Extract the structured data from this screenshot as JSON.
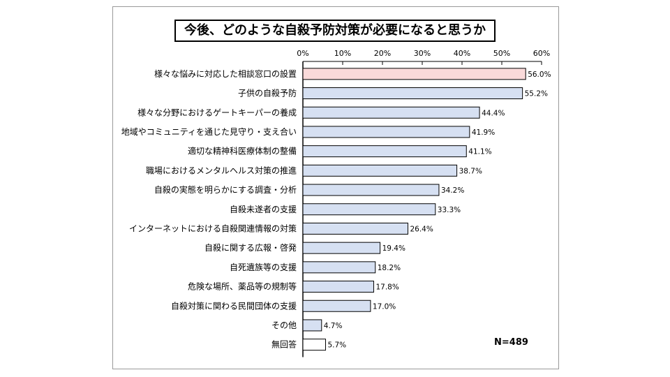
{
  "chart_data": {
    "type": "bar",
    "orientation": "horizontal",
    "title": "今後、どのような自殺予防対策が必要になると思うか",
    "xlabel": "",
    "ylabel": "",
    "xlim": [
      0,
      60
    ],
    "ticks": [
      "0%",
      "10%",
      "20%",
      "30%",
      "40%",
      "50%",
      "60%"
    ],
    "categories": [
      "様々な悩みに対応した相談窓口の設置",
      "子供の自殺予防",
      "様々な分野におけるゲートキーパーの養成",
      "地域やコミュニティを通じた見守り・支え合い",
      "適切な精神科医療体制の整備",
      "職場におけるメンタルヘルス対策の推進",
      "自殺の実態を明らかにする調査・分析",
      "自殺未遂者の支援",
      "インターネットにおける自殺関連情報の対策",
      "自殺に関する広報・啓発",
      "自死遺族等の支援",
      "危険な場所、薬品等の規制等",
      "自殺対策に関わる民間団体の支援",
      "その他",
      "無回答"
    ],
    "values": [
      56.0,
      55.2,
      44.4,
      41.9,
      41.1,
      38.7,
      34.2,
      33.3,
      26.4,
      19.4,
      18.2,
      17.8,
      17.0,
      4.7,
      5.7
    ],
    "value_labels": [
      "56.0%",
      "55.2%",
      "44.4%",
      "41.9%",
      "41.1%",
      "38.7%",
      "34.2%",
      "33.3%",
      "26.4%",
      "19.4%",
      "18.2%",
      "17.8%",
      "17.0%",
      "4.7%",
      "5.7%"
    ],
    "bar_colors": [
      "#fadada",
      "#d6e0f2",
      "#d6e0f2",
      "#d6e0f2",
      "#d6e0f2",
      "#d6e0f2",
      "#d6e0f2",
      "#d6e0f2",
      "#d6e0f2",
      "#d6e0f2",
      "#d6e0f2",
      "#d6e0f2",
      "#d6e0f2",
      "#d6e0f2",
      "#ffffff"
    ],
    "annotation": "N=489",
    "grid": false
  }
}
